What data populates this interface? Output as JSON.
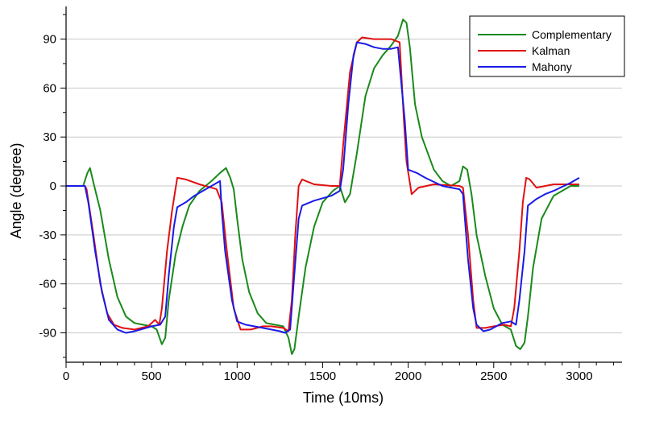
{
  "chart_data": {
    "type": "line",
    "xlabel": "Time (10ms)",
    "ylabel": "Angle (degree)",
    "xlim": [
      0,
      3250
    ],
    "ylim": [
      -108,
      110
    ],
    "x_ticks": [
      0,
      500,
      1000,
      1500,
      2000,
      2500,
      3000
    ],
    "x_tick_labels": [
      "0",
      "500",
      "1000",
      "1500",
      "2000",
      "2500",
      "3000"
    ],
    "y_ticks": [
      -90,
      -60,
      -30,
      0,
      30,
      60,
      90
    ],
    "y_tick_labels": [
      "-90",
      "-60",
      "-30",
      "0",
      "30",
      "60",
      "90"
    ],
    "grid": true,
    "legend_position": "top-right",
    "series": [
      {
        "name": "Complementary",
        "color": "#1a8a1a",
        "points": [
          [
            0,
            0
          ],
          [
            100,
            0
          ],
          [
            125,
            8
          ],
          [
            140,
            11
          ],
          [
            160,
            2
          ],
          [
            200,
            -15
          ],
          [
            250,
            -45
          ],
          [
            300,
            -68
          ],
          [
            350,
            -80
          ],
          [
            400,
            -84
          ],
          [
            450,
            -85
          ],
          [
            500,
            -86
          ],
          [
            530,
            -88
          ],
          [
            560,
            -97
          ],
          [
            580,
            -93
          ],
          [
            600,
            -70
          ],
          [
            640,
            -42
          ],
          [
            680,
            -25
          ],
          [
            720,
            -12
          ],
          [
            780,
            -3
          ],
          [
            850,
            3
          ],
          [
            900,
            8
          ],
          [
            935,
            11
          ],
          [
            960,
            5
          ],
          [
            980,
            -2
          ],
          [
            1000,
            -20
          ],
          [
            1030,
            -45
          ],
          [
            1070,
            -65
          ],
          [
            1120,
            -78
          ],
          [
            1170,
            -84
          ],
          [
            1220,
            -85
          ],
          [
            1270,
            -86
          ],
          [
            1300,
            -93
          ],
          [
            1320,
            -103
          ],
          [
            1335,
            -100
          ],
          [
            1360,
            -80
          ],
          [
            1400,
            -50
          ],
          [
            1450,
            -25
          ],
          [
            1500,
            -10
          ],
          [
            1560,
            -3
          ],
          [
            1600,
            0
          ],
          [
            1630,
            -10
          ],
          [
            1660,
            -5
          ],
          [
            1700,
            20
          ],
          [
            1750,
            55
          ],
          [
            1800,
            72
          ],
          [
            1850,
            80
          ],
          [
            1900,
            86
          ],
          [
            1940,
            92
          ],
          [
            1970,
            102
          ],
          [
            1990,
            100
          ],
          [
            2010,
            85
          ],
          [
            2040,
            50
          ],
          [
            2080,
            30
          ],
          [
            2150,
            10
          ],
          [
            2200,
            3
          ],
          [
            2250,
            0
          ],
          [
            2300,
            3
          ],
          [
            2320,
            12
          ],
          [
            2345,
            10
          ],
          [
            2370,
            -5
          ],
          [
            2400,
            -30
          ],
          [
            2450,
            -55
          ],
          [
            2500,
            -75
          ],
          [
            2550,
            -85
          ],
          [
            2600,
            -88
          ],
          [
            2630,
            -98
          ],
          [
            2655,
            -100
          ],
          [
            2680,
            -96
          ],
          [
            2700,
            -80
          ],
          [
            2730,
            -50
          ],
          [
            2780,
            -20
          ],
          [
            2850,
            -6
          ],
          [
            2950,
            0
          ],
          [
            3000,
            0
          ]
        ]
      },
      {
        "name": "Kalman",
        "color": "#e01010",
        "points": [
          [
            0,
            0
          ],
          [
            110,
            0
          ],
          [
            120,
            -2
          ],
          [
            160,
            -30
          ],
          [
            200,
            -60
          ],
          [
            240,
            -78
          ],
          [
            280,
            -85
          ],
          [
            330,
            -87
          ],
          [
            400,
            -88
          ],
          [
            480,
            -86
          ],
          [
            520,
            -82
          ],
          [
            545,
            -85
          ],
          [
            560,
            -75
          ],
          [
            590,
            -40
          ],
          [
            620,
            -15
          ],
          [
            650,
            5
          ],
          [
            700,
            4
          ],
          [
            780,
            1
          ],
          [
            850,
            -1
          ],
          [
            880,
            -2
          ],
          [
            910,
            -10
          ],
          [
            940,
            -40
          ],
          [
            980,
            -75
          ],
          [
            1020,
            -88
          ],
          [
            1080,
            -88
          ],
          [
            1150,
            -86
          ],
          [
            1200,
            -86
          ],
          [
            1270,
            -87
          ],
          [
            1300,
            -89
          ],
          [
            1320,
            -70
          ],
          [
            1340,
            -30
          ],
          [
            1360,
            0
          ],
          [
            1380,
            4
          ],
          [
            1450,
            1
          ],
          [
            1550,
            0
          ],
          [
            1600,
            0
          ],
          [
            1620,
            25
          ],
          [
            1660,
            70
          ],
          [
            1700,
            88
          ],
          [
            1730,
            91
          ],
          [
            1800,
            90
          ],
          [
            1900,
            90
          ],
          [
            1950,
            88
          ],
          [
            1975,
            40
          ],
          [
            1990,
            15
          ],
          [
            2020,
            -5
          ],
          [
            2060,
            -1
          ],
          [
            2150,
            1
          ],
          [
            2300,
            0
          ],
          [
            2320,
            -1
          ],
          [
            2350,
            -30
          ],
          [
            2380,
            -70
          ],
          [
            2400,
            -87
          ],
          [
            2450,
            -87
          ],
          [
            2500,
            -86
          ],
          [
            2560,
            -85
          ],
          [
            2600,
            -86
          ],
          [
            2620,
            -75
          ],
          [
            2650,
            -40
          ],
          [
            2670,
            -10
          ],
          [
            2690,
            5
          ],
          [
            2710,
            4
          ],
          [
            2750,
            -1
          ],
          [
            2850,
            1
          ],
          [
            3000,
            1
          ]
        ]
      },
      {
        "name": "Mahony",
        "color": "#1a1ae6",
        "points": [
          [
            0,
            0
          ],
          [
            110,
            0
          ],
          [
            130,
            -10
          ],
          [
            170,
            -40
          ],
          [
            210,
            -65
          ],
          [
            250,
            -82
          ],
          [
            300,
            -88
          ],
          [
            350,
            -90
          ],
          [
            400,
            -89
          ],
          [
            500,
            -86
          ],
          [
            550,
            -85
          ],
          [
            580,
            -80
          ],
          [
            600,
            -55
          ],
          [
            630,
            -25
          ],
          [
            650,
            -13
          ],
          [
            700,
            -10
          ],
          [
            750,
            -6
          ],
          [
            800,
            -3
          ],
          [
            850,
            0
          ],
          [
            900,
            3
          ],
          [
            910,
            -15
          ],
          [
            930,
            -40
          ],
          [
            970,
            -70
          ],
          [
            1000,
            -83
          ],
          [
            1050,
            -85
          ],
          [
            1100,
            -86
          ],
          [
            1150,
            -87
          ],
          [
            1200,
            -88
          ],
          [
            1250,
            -89
          ],
          [
            1280,
            -90
          ],
          [
            1310,
            -88
          ],
          [
            1330,
            -60
          ],
          [
            1360,
            -20
          ],
          [
            1380,
            -12
          ],
          [
            1450,
            -9
          ],
          [
            1550,
            -6
          ],
          [
            1600,
            -3
          ],
          [
            1620,
            10
          ],
          [
            1650,
            50
          ],
          [
            1680,
            80
          ],
          [
            1700,
            88
          ],
          [
            1750,
            87
          ],
          [
            1800,
            85
          ],
          [
            1850,
            84
          ],
          [
            1900,
            84
          ],
          [
            1940,
            85
          ],
          [
            1980,
            40
          ],
          [
            2000,
            10
          ],
          [
            2050,
            8
          ],
          [
            2100,
            5
          ],
          [
            2200,
            0
          ],
          [
            2300,
            -2
          ],
          [
            2320,
            -5
          ],
          [
            2350,
            -45
          ],
          [
            2380,
            -75
          ],
          [
            2400,
            -85
          ],
          [
            2440,
            -89
          ],
          [
            2480,
            -88
          ],
          [
            2550,
            -84
          ],
          [
            2600,
            -83
          ],
          [
            2630,
            -85
          ],
          [
            2650,
            -70
          ],
          [
            2680,
            -40
          ],
          [
            2700,
            -12
          ],
          [
            2750,
            -8
          ],
          [
            2800,
            -5
          ],
          [
            2850,
            -3
          ],
          [
            2950,
            2
          ],
          [
            3000,
            5
          ]
        ]
      }
    ]
  }
}
